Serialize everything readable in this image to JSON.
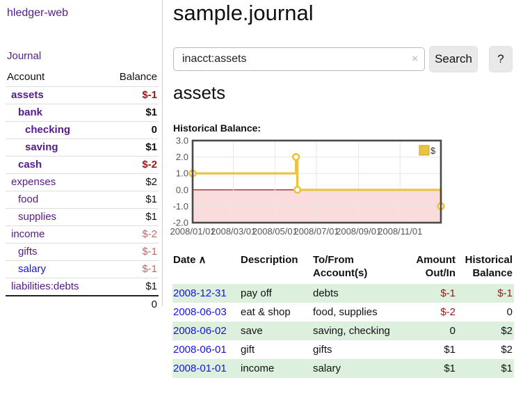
{
  "colors": {
    "link_purple": "#551a8b",
    "link_blue": "#1414dd",
    "text": "#111111",
    "negative_strong": "#9d1616",
    "negative_soft": "#b96c6c",
    "accent_gold": "#edc240",
    "gold_border": "#c9a52e",
    "stripe_green": "#ddefdd",
    "zero_line": "#8b0000",
    "negative_region": "#fbdcdc",
    "gridline": "#e6e6e6",
    "plot_border": "#4a4a4a",
    "tick_text": "#545454"
  },
  "sidebar": {
    "brand": "hledger-web",
    "nav": {
      "journal": "Journal"
    },
    "accounts_table": {
      "headers": {
        "account": "Account",
        "balance": "Balance"
      },
      "rows": [
        {
          "name": "assets",
          "level": 0,
          "strong": true,
          "name_color": "link_purple",
          "balance": "$-1",
          "balance_color": "negative_strong"
        },
        {
          "name": "bank",
          "level": 1,
          "strong": true,
          "name_color": "link_purple",
          "balance": "$1",
          "balance_color": "text"
        },
        {
          "name": "checking",
          "level": 2,
          "strong": true,
          "name_color": "link_purple",
          "balance": "0",
          "balance_color": "text"
        },
        {
          "name": "saving",
          "level": 2,
          "strong": true,
          "name_color": "link_purple",
          "balance": "$1",
          "balance_color": "text"
        },
        {
          "name": "cash",
          "level": 1,
          "strong": true,
          "name_color": "link_purple",
          "balance": "$-2",
          "balance_color": "negative_strong"
        },
        {
          "name": "expenses",
          "level": 0,
          "strong": false,
          "name_color": "link_purple",
          "balance": "$2",
          "balance_color": "text"
        },
        {
          "name": "food",
          "level": 1,
          "strong": false,
          "name_color": "link_purple",
          "balance": "$1",
          "balance_color": "text"
        },
        {
          "name": "supplies",
          "level": 1,
          "strong": false,
          "name_color": "link_purple",
          "balance": "$1",
          "balance_color": "text"
        },
        {
          "name": "income",
          "level": 0,
          "strong": false,
          "name_color": "link_purple",
          "balance": "$-2",
          "balance_color": "negative_soft"
        },
        {
          "name": "gifts",
          "level": 1,
          "strong": false,
          "name_color": "link_purple",
          "balance": "$-1",
          "balance_color": "negative_soft"
        },
        {
          "name": "salary",
          "level": 1,
          "strong": false,
          "name_color": "link_blue",
          "balance": "$-1",
          "balance_color": "negative_soft"
        },
        {
          "name": "liabilities:debts",
          "level": 0,
          "strong": false,
          "name_color": "link_purple",
          "balance": "$1",
          "balance_color": "text"
        }
      ],
      "total": "0"
    }
  },
  "header": {
    "title": "sample.journal"
  },
  "search": {
    "value": "inacct:assets",
    "clear_icon": "×",
    "button_label": "Search",
    "help_label": "?"
  },
  "account_page": {
    "heading": "assets",
    "chart_label": "Historical Balance:"
  },
  "chart_data": {
    "type": "line",
    "step": true,
    "title": "Historical Balance",
    "legend": "$",
    "legend_position": "top-right",
    "grid": true,
    "ylim": [
      -2,
      3
    ],
    "yticks": [
      "3.0",
      "2.0",
      "1.0",
      "0.0",
      "-1.0",
      "-2.0"
    ],
    "ytick_values": [
      3,
      2,
      1,
      0,
      -1,
      -2
    ],
    "x_range_days": 365,
    "xticks": [
      {
        "label": "2008/01/01",
        "d": 0
      },
      {
        "label": "2008/03/01",
        "d": 60
      },
      {
        "label": "2008/05/01",
        "d": 121
      },
      {
        "label": "2008/07/01",
        "d": 182
      },
      {
        "label": "2008/09/01",
        "d": 244
      },
      {
        "label": "2008/11/01",
        "d": 305
      }
    ],
    "series": [
      {
        "name": "$",
        "color": "#edc240",
        "points": [
          {
            "x": "2008-01-01",
            "d": 0,
            "y": 1
          },
          {
            "x": "2008-06-01",
            "d": 152,
            "y": 2
          },
          {
            "x": "2008-06-03",
            "d": 154,
            "y": 0
          },
          {
            "x": "2008-12-31",
            "d": 365,
            "y": -1
          }
        ]
      }
    ]
  },
  "register_table": {
    "headers": {
      "date": "Date",
      "sort_arrow": "∧",
      "description": "Description",
      "accounts_line1": "To/From",
      "accounts_line2": "Account(s)",
      "amount_line1": "Amount",
      "amount_line2": "Out/In",
      "balance_line1": "Historical",
      "balance_line2": "Balance"
    },
    "rows": [
      {
        "date": "2008-12-31",
        "description": "pay off",
        "accounts": "debts",
        "amount": "$-1",
        "amount_color": "negative_strong",
        "balance": "$-1",
        "balance_color": "negative_strong"
      },
      {
        "date": "2008-06-03",
        "description": "eat & shop",
        "accounts": "food, supplies",
        "amount": "$-2",
        "amount_color": "negative_strong",
        "balance": "0",
        "balance_color": "text"
      },
      {
        "date": "2008-06-02",
        "description": "save",
        "accounts": "saving, checking",
        "amount": "0",
        "amount_color": "text",
        "balance": "$2",
        "balance_color": "text"
      },
      {
        "date": "2008-06-01",
        "description": "gift",
        "accounts": "gifts",
        "amount": "$1",
        "amount_color": "text",
        "balance": "$2",
        "balance_color": "text"
      },
      {
        "date": "2008-01-01",
        "description": "income",
        "accounts": "salary",
        "amount": "$1",
        "amount_color": "text",
        "balance": "$1",
        "balance_color": "text"
      }
    ]
  }
}
